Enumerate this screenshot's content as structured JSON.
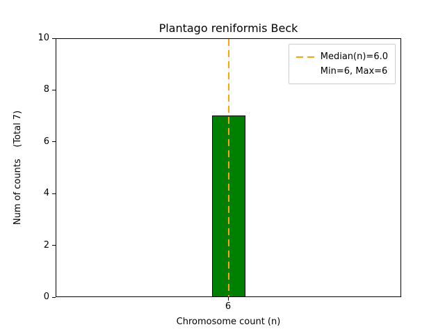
{
  "figure": {
    "title": "Plantago reniformis Beck",
    "xlabel": "Chromosome count (n)",
    "ylabel": "Num of counts    (Total 7)"
  },
  "legend": {
    "position": "upper right",
    "items": [
      {
        "label": "Median(n)=6.0",
        "marker": "dashed-line",
        "color": "#ffa500"
      },
      {
        "label": "Min=6, Max=6",
        "marker": "none"
      }
    ]
  },
  "chart_data": {
    "type": "bar",
    "title": "Plantago reniformis Beck",
    "xlabel": "Chromosome count (n)",
    "ylabel": "Num of counts (Total 7)",
    "categories": [
      "6"
    ],
    "values": [
      7
    ],
    "total": 7,
    "ylim": [
      0,
      10
    ],
    "yticks": [
      0,
      2,
      4,
      6,
      8,
      10
    ],
    "grid": false,
    "bar_color": "#008000",
    "bar_edge_color": "#000000",
    "median_line": {
      "x": 6,
      "value": 6.0,
      "color": "#ffa500",
      "style": "dashed"
    },
    "min": 6,
    "max": 6,
    "legend_position": "upper right"
  }
}
